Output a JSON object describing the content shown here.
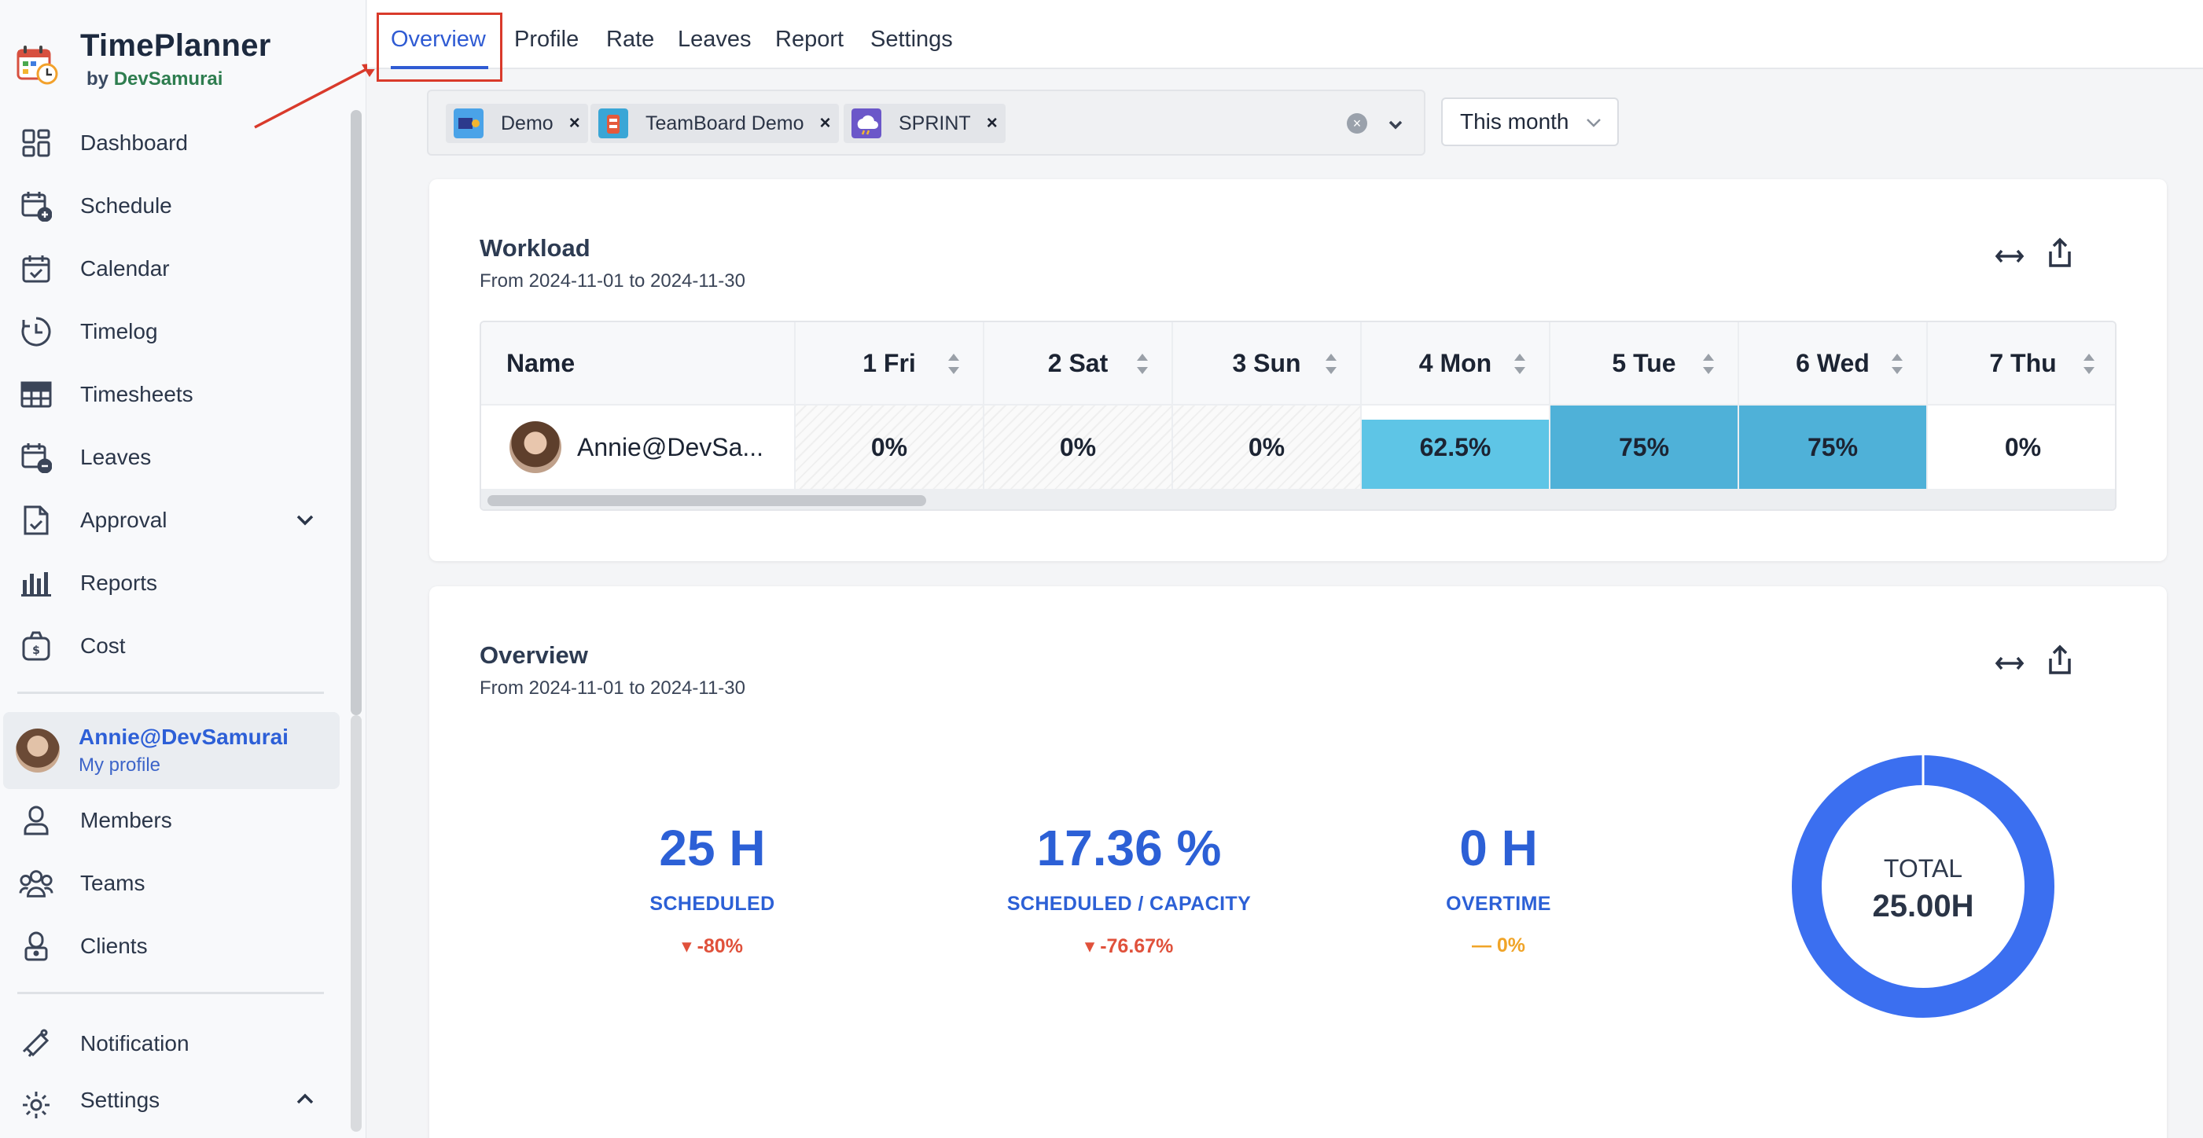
{
  "brand": {
    "name": "TimePlanner",
    "by_prefix": "by",
    "by_name": "DevSamurai"
  },
  "sidebar": {
    "items": [
      {
        "label": "Dashboard",
        "icon": "dashboard-grid-icon"
      },
      {
        "label": "Schedule",
        "icon": "calendar-plus-icon"
      },
      {
        "label": "Calendar",
        "icon": "calendar-check-icon"
      },
      {
        "label": "Timelog",
        "icon": "clock-history-icon"
      },
      {
        "label": "Timesheets",
        "icon": "table-grid-icon"
      },
      {
        "label": "Leaves",
        "icon": "calendar-minus-icon"
      },
      {
        "label": "Approval",
        "icon": "file-check-icon"
      },
      {
        "label": "Reports",
        "icon": "bar-chart-icon"
      },
      {
        "label": "Cost",
        "icon": "money-bag-icon"
      }
    ],
    "profile": {
      "name": "Annie@DevSamurai",
      "sub": "My profile"
    },
    "items2": [
      {
        "label": "Members",
        "icon": "user-icon"
      },
      {
        "label": "Teams",
        "icon": "team-icon"
      },
      {
        "label": "Clients",
        "icon": "client-lock-icon"
      }
    ],
    "items3": [
      {
        "label": "Notification",
        "icon": "bell-icon"
      },
      {
        "label": "Settings",
        "icon": "gear-icon"
      }
    ]
  },
  "tabs": [
    {
      "label": "Overview",
      "active": true
    },
    {
      "label": "Profile"
    },
    {
      "label": "Rate"
    },
    {
      "label": "Leaves"
    },
    {
      "label": "Report"
    },
    {
      "label": "Settings"
    }
  ],
  "filter": {
    "chips": [
      {
        "label": "Demo",
        "color": "#4aa3e8"
      },
      {
        "label": "TeamBoard Demo",
        "color": "#3aa6d6"
      },
      {
        "label": "SPRINT",
        "color": "#6b57c9"
      }
    ],
    "clear_glyph": "×",
    "remove_glyph": "×",
    "period": "This month"
  },
  "workload": {
    "title": "Workload",
    "range": "From 2024-11-01 to 2024-11-30",
    "name_header": "Name",
    "columns": [
      "1 Fri",
      "2 Sat",
      "3 Sun",
      "4 Mon",
      "5 Tue",
      "6 Wed",
      "7 Thu"
    ],
    "row": {
      "name": "Annie@DevSa...",
      "values": [
        "0%",
        "0%",
        "0%",
        "62.5%",
        "75%",
        "75%",
        "0%"
      ],
      "levels": [
        0,
        0,
        0,
        0.625,
        0.75,
        0.75,
        0
      ],
      "weekend": [
        true,
        true,
        true,
        false,
        false,
        false,
        false
      ]
    },
    "bar_colors": {
      "low": "#5ec5e6",
      "high": "#4fb1d8"
    }
  },
  "overview": {
    "title": "Overview",
    "range": "From 2024-11-01 to 2024-11-30",
    "stats": [
      {
        "value": "25 H",
        "label": "SCHEDULED",
        "change": "-80%",
        "trend": "down"
      },
      {
        "value": "17.36 %",
        "label": "SCHEDULED / CAPACITY",
        "change": "-76.67%",
        "trend": "down"
      },
      {
        "value": "0 H",
        "label": "OVERTIME",
        "change": "0%",
        "trend": "flat"
      }
    ],
    "donut": {
      "label": "TOTAL",
      "value": "25.00H",
      "color": "#3b6ff0"
    }
  },
  "colors": {
    "accent": "#2f5bd3",
    "highlight": "#d93a2b"
  }
}
